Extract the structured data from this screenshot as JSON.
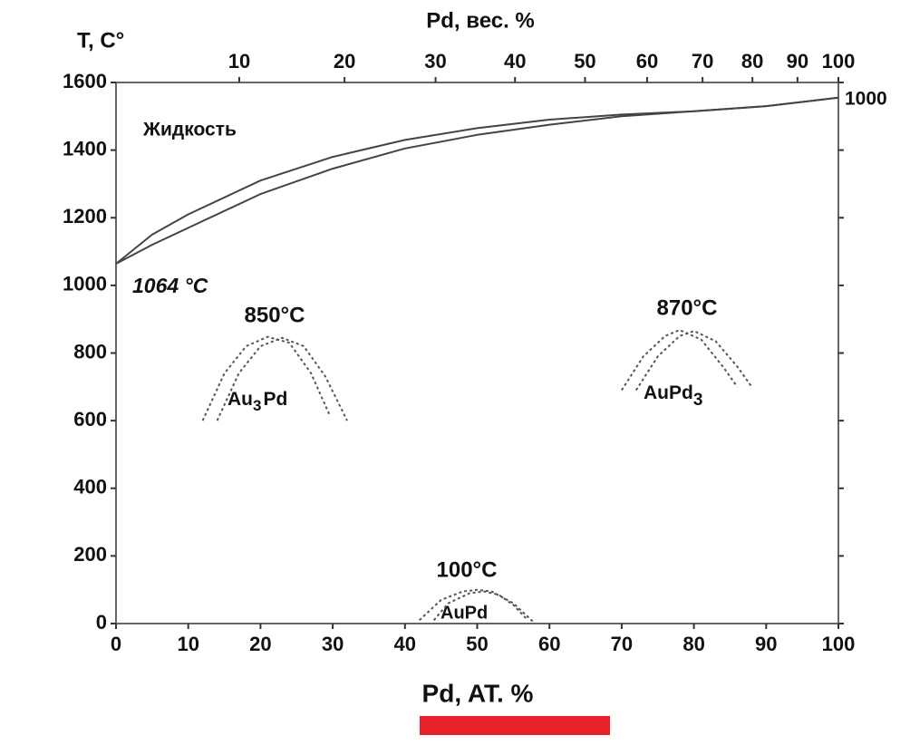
{
  "chart_data": {
    "type": "line",
    "xlabel": "Pd, AT. %",
    "x2label": "Pd, вес. %",
    "ylabel": "T, C°",
    "xlim": [
      0,
      100
    ],
    "xticks": [
      0,
      10,
      20,
      30,
      40,
      50,
      60,
      70,
      80,
      90,
      100
    ],
    "x2ticks": [
      10,
      20,
      30,
      40,
      50,
      60,
      70,
      80,
      90,
      100
    ],
    "ylim": [
      0,
      1600
    ],
    "yticks": [
      0,
      200,
      400,
      600,
      800,
      1000,
      1200,
      1400,
      1600
    ],
    "series": [
      {
        "color": "#444444",
        "dashed": false,
        "x": [
          0,
          5,
          10,
          20,
          30,
          40,
          50,
          60,
          70,
          80,
          90,
          100
        ],
        "values": [
          1064,
          1150,
          1210,
          1310,
          1380,
          1430,
          1465,
          1490,
          1505,
          1515,
          1530,
          1555
        ]
      },
      {
        "color": "#444444",
        "dashed": false,
        "x": [
          0,
          5,
          10,
          20,
          30,
          40,
          50,
          60,
          70,
          80,
          90,
          100
        ],
        "values": [
          1064,
          1120,
          1170,
          1270,
          1345,
          1405,
          1445,
          1475,
          1500,
          1515,
          1530,
          1555
        ]
      },
      {
        "color": "#555555",
        "dashed": true,
        "x": [
          12,
          15,
          18,
          21,
          24,
          27,
          29.5
        ],
        "values": [
          600,
          740,
          820,
          848,
          830,
          740,
          620
        ]
      },
      {
        "color": "#555555",
        "dashed": true,
        "x": [
          14,
          17,
          20,
          23,
          26,
          29,
          32
        ],
        "values": [
          600,
          740,
          820,
          845,
          820,
          730,
          600
        ]
      },
      {
        "color": "#555555",
        "dashed": true,
        "x": [
          70,
          73,
          76,
          78,
          81,
          84,
          86
        ],
        "values": [
          690,
          790,
          850,
          868,
          840,
          760,
          700
        ]
      },
      {
        "color": "#555555",
        "dashed": true,
        "x": [
          72,
          75,
          78,
          80,
          83,
          86,
          88
        ],
        "values": [
          690,
          790,
          850,
          865,
          835,
          760,
          700
        ]
      },
      {
        "color": "#555555",
        "dashed": true,
        "x": [
          42,
          45,
          48,
          50,
          52,
          55,
          58
        ],
        "values": [
          10,
          70,
          95,
          100,
          95,
          60,
          0
        ]
      },
      {
        "color": "#555555",
        "dashed": true,
        "x": [
          44,
          46,
          49,
          51,
          53,
          55,
          57
        ],
        "values": [
          10,
          60,
          90,
          95,
          85,
          55,
          10
        ]
      }
    ],
    "annotations": [
      "Жидкость",
      "1064 °C",
      "850°C",
      "870°C",
      "100°C",
      "1000"
    ],
    "phase_labels": [
      [
        "Au",
        "3",
        "Pd"
      ],
      [
        "AuPd",
        "3"
      ],
      [
        "AuPd"
      ]
    ]
  }
}
